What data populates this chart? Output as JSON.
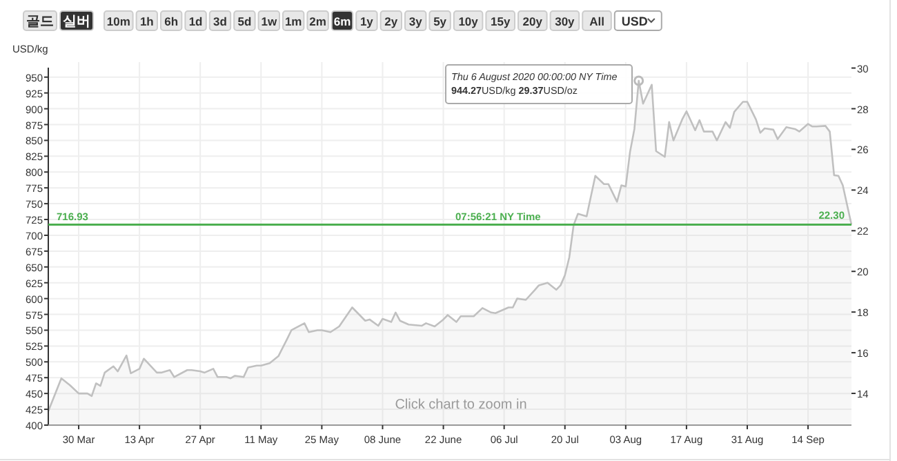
{
  "chart_data": {
    "type": "area",
    "ylabel": "USD/kg",
    "x": [
      "2020-03-23",
      "2020-03-26",
      "2020-03-28",
      "2020-03-30",
      "2020-04-01",
      "2020-04-02",
      "2020-04-03",
      "2020-04-04",
      "2020-04-05",
      "2020-04-07",
      "2020-04-08",
      "2020-04-10",
      "2020-04-11",
      "2020-04-13",
      "2020-04-14",
      "2020-04-17",
      "2020-04-18",
      "2020-04-20",
      "2020-04-21",
      "2020-04-24",
      "2020-04-25",
      "2020-04-27",
      "2020-04-28",
      "2020-04-30",
      "2020-05-01",
      "2020-05-03",
      "2020-05-04",
      "2020-05-05",
      "2020-05-07",
      "2020-05-08",
      "2020-05-10",
      "2020-05-11",
      "2020-05-13",
      "2020-05-15",
      "2020-05-17",
      "2020-05-18",
      "2020-05-21",
      "2020-05-22",
      "2020-05-24",
      "2020-05-25",
      "2020-05-27",
      "2020-05-29",
      "2020-06-01",
      "2020-06-04",
      "2020-06-05",
      "2020-06-07",
      "2020-06-08",
      "2020-06-10",
      "2020-06-11",
      "2020-06-12",
      "2020-06-14",
      "2020-06-17",
      "2020-06-18",
      "2020-06-20",
      "2020-06-22",
      "2020-06-23",
      "2020-06-25",
      "2020-06-26",
      "2020-06-29",
      "2020-07-01",
      "2020-07-03",
      "2020-07-04",
      "2020-07-07",
      "2020-07-08",
      "2020-07-09",
      "2020-07-11",
      "2020-07-13",
      "2020-07-14",
      "2020-07-16",
      "2020-07-18",
      "2020-07-19",
      "2020-07-20",
      "2020-07-21",
      "2020-07-22",
      "2020-07-23",
      "2020-07-25",
      "2020-07-27",
      "2020-07-29",
      "2020-07-30",
      "2020-08-01",
      "2020-08-02",
      "2020-08-03",
      "2020-08-04",
      "2020-08-05",
      "2020-08-06",
      "2020-08-07",
      "2020-08-09",
      "2020-08-10",
      "2020-08-12",
      "2020-08-13",
      "2020-08-14",
      "2020-08-16",
      "2020-08-17",
      "2020-08-19",
      "2020-08-20",
      "2020-08-21",
      "2020-08-23",
      "2020-08-24",
      "2020-08-26",
      "2020-08-27",
      "2020-08-28",
      "2020-08-30",
      "2020-08-31",
      "2020-09-02",
      "2020-09-03",
      "2020-09-04",
      "2020-09-06",
      "2020-09-07",
      "2020-09-09",
      "2020-09-11",
      "2020-09-12",
      "2020-09-14",
      "2020-09-15",
      "2020-09-16",
      "2020-09-18",
      "2020-09-19",
      "2020-09-20",
      "2020-09-21",
      "2020-09-22",
      "2020-09-24"
    ],
    "series": [
      {
        "color": "#c0c0c0",
        "values": [
          422,
          474,
          463,
          450,
          450,
          446,
          466,
          462,
          483,
          493,
          485,
          510,
          482,
          489,
          505,
          483,
          483,
          487,
          476,
          487,
          487,
          485,
          483,
          489,
          476,
          476,
          474,
          478,
          476,
          491,
          494,
          494,
          498,
          509,
          536,
          550,
          561,
          547,
          550,
          550,
          547,
          556,
          586,
          565,
          567,
          557,
          568,
          563,
          578,
          565,
          559,
          557,
          561,
          556,
          567,
          574,
          563,
          572,
          572,
          585,
          578,
          577,
          586,
          586,
          600,
          598,
          613,
          621,
          625,
          614,
          621,
          637,
          665,
          716,
          734,
          730,
          794,
          781,
          781,
          753,
          779,
          777,
          832,
          868,
          944.27,
          908,
          938,
          833,
          824,
          879,
          850,
          883,
          896,
          866,
          882,
          864,
          864,
          850,
          879,
          870,
          895,
          911,
          911,
          883,
          862,
          869,
          867,
          852,
          871,
          868,
          864,
          876,
          872,
          872,
          873,
          864,
          795,
          794,
          779,
          716.93
        ]
      }
    ],
    "xlim": [
      "2020-03-23",
      "2020-09-24"
    ],
    "xticks": [
      {
        "value": "2020-03-30",
        "label": "30 Mar"
      },
      {
        "value": "2020-04-13",
        "label": "13 Apr"
      },
      {
        "value": "2020-04-27",
        "label": "27 Apr"
      },
      {
        "value": "2020-05-11",
        "label": "11 May"
      },
      {
        "value": "2020-05-25",
        "label": "25 May"
      },
      {
        "value": "2020-06-08",
        "label": "08 June"
      },
      {
        "value": "2020-06-22",
        "label": "22 June"
      },
      {
        "value": "2020-07-06",
        "label": "06 Jul"
      },
      {
        "value": "2020-07-20",
        "label": "20 Jul"
      },
      {
        "value": "2020-08-03",
        "label": "03 Aug"
      },
      {
        "value": "2020-08-17",
        "label": "17 Aug"
      },
      {
        "value": "2020-08-31",
        "label": "31 Aug"
      },
      {
        "value": "2020-09-14",
        "label": "14 Sep"
      }
    ],
    "ylim": [
      400,
      965
    ],
    "yticks": [
      400,
      425,
      450,
      475,
      500,
      525,
      550,
      575,
      600,
      625,
      650,
      675,
      700,
      725,
      750,
      775,
      800,
      825,
      850,
      875,
      900,
      925,
      950
    ],
    "y2lim": [
      12.44,
      30.02
    ],
    "y2ticks": [
      14,
      16,
      18,
      20,
      22,
      24,
      26,
      28,
      30
    ],
    "grid": true,
    "marker": "none",
    "ref_lines": [
      {
        "axis": "y",
        "value": 716.93,
        "label": "716.93",
        "color": "#4caf50"
      }
    ],
    "annotations": [
      "골드",
      "실버",
      "10m",
      "1h",
      "6h",
      "1d",
      "3d",
      "5d",
      "1w",
      "1m",
      "2m",
      "6m",
      "1y",
      "2y",
      "3y",
      "5y",
      "10y",
      "15y",
      "20y",
      "30y",
      "All",
      "USD",
      "07:56:21 NY Time",
      "Click chart to zoom in",
      {
        "text": "Thu 6 August 2020 00:00:00 NY Time\n944.27USD/kg 29.37USD/oz",
        "x": "2020-08-06",
        "y": 944.27
      },
      {
        "text": "22.30",
        "x": "2020-09-24",
        "y": 716.93
      }
    ]
  }
}
